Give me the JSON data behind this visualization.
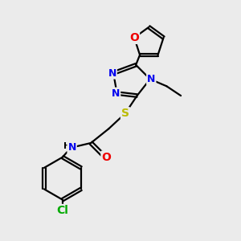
{
  "bg_color": "#ebebeb",
  "bond_color": "#000000",
  "bond_width": 1.6,
  "atom_colors": {
    "N": "#0000ee",
    "O": "#ee0000",
    "S": "#bbbb00",
    "Cl": "#00aa00",
    "H": "#000000",
    "C": "#000000"
  },
  "font_size": 9,
  "fig_size": [
    3.0,
    3.0
  ],
  "dpi": 100
}
